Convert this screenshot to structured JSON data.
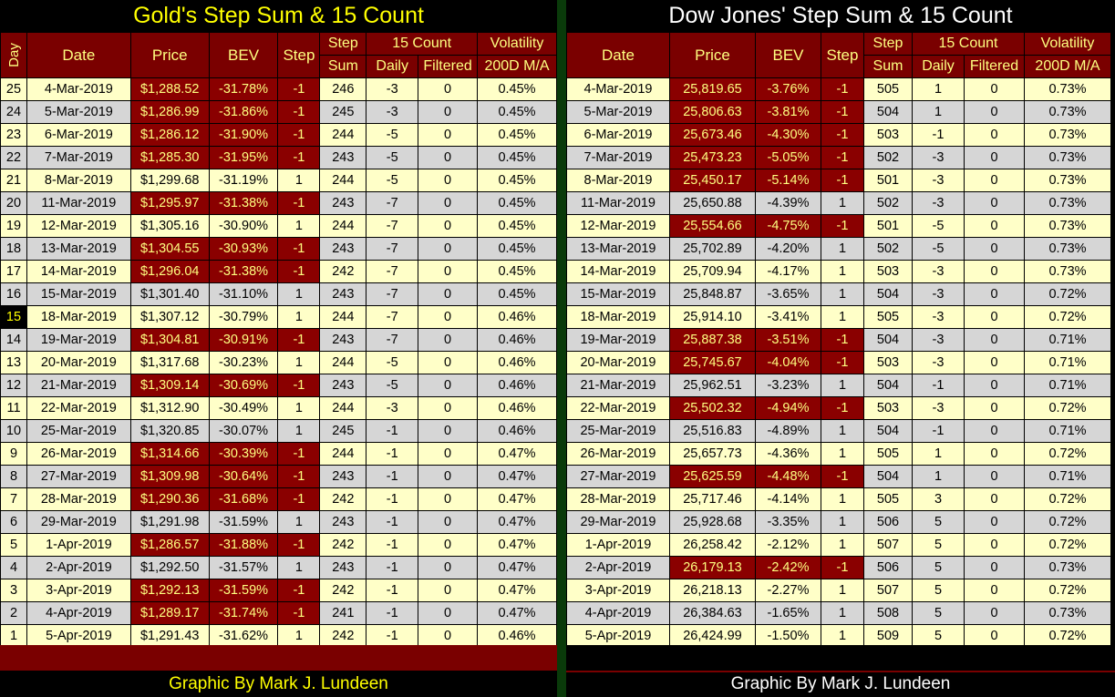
{
  "gold": {
    "title": "Gold's Step Sum & 15 Count",
    "headers": {
      "day": "Day",
      "date": "Date",
      "price": "Price",
      "bev": "BEV",
      "step": "Step",
      "step_sum_1": "Step",
      "step_sum_2": "Sum",
      "count15": "15 Count",
      "daily": "Daily",
      "filtered": "Filtered",
      "vol_1": "Volatility",
      "vol_2": "200D M/A"
    },
    "rows": [
      {
        "day": "25",
        "date": "4-Mar-2019",
        "price": "$1,288.52",
        "bev": "-31.78%",
        "step": "-1",
        "sum": "246",
        "daily": "-3",
        "filtered": "0",
        "vol": "0.45%"
      },
      {
        "day": "24",
        "date": "5-Mar-2019",
        "price": "$1,286.99",
        "bev": "-31.86%",
        "step": "-1",
        "sum": "245",
        "daily": "-3",
        "filtered": "0",
        "vol": "0.45%"
      },
      {
        "day": "23",
        "date": "6-Mar-2019",
        "price": "$1,286.12",
        "bev": "-31.90%",
        "step": "-1",
        "sum": "244",
        "daily": "-5",
        "filtered": "0",
        "vol": "0.45%"
      },
      {
        "day": "22",
        "date": "7-Mar-2019",
        "price": "$1,285.30",
        "bev": "-31.95%",
        "step": "-1",
        "sum": "243",
        "daily": "-5",
        "filtered": "0",
        "vol": "0.45%"
      },
      {
        "day": "21",
        "date": "8-Mar-2019",
        "price": "$1,299.68",
        "bev": "-31.19%",
        "step": "1",
        "sum": "244",
        "daily": "-5",
        "filtered": "0",
        "vol": "0.45%"
      },
      {
        "day": "20",
        "date": "11-Mar-2019",
        "price": "$1,295.97",
        "bev": "-31.38%",
        "step": "-1",
        "sum": "243",
        "daily": "-7",
        "filtered": "0",
        "vol": "0.45%"
      },
      {
        "day": "19",
        "date": "12-Mar-2019",
        "price": "$1,305.16",
        "bev": "-30.90%",
        "step": "1",
        "sum": "244",
        "daily": "-7",
        "filtered": "0",
        "vol": "0.45%"
      },
      {
        "day": "18",
        "date": "13-Mar-2019",
        "price": "$1,304.55",
        "bev": "-30.93%",
        "step": "-1",
        "sum": "243",
        "daily": "-7",
        "filtered": "0",
        "vol": "0.45%"
      },
      {
        "day": "17",
        "date": "14-Mar-2019",
        "price": "$1,296.04",
        "bev": "-31.38%",
        "step": "-1",
        "sum": "242",
        "daily": "-7",
        "filtered": "0",
        "vol": "0.45%"
      },
      {
        "day": "16",
        "date": "15-Mar-2019",
        "price": "$1,301.40",
        "bev": "-31.10%",
        "step": "1",
        "sum": "243",
        "daily": "-7",
        "filtered": "0",
        "vol": "0.45%"
      },
      {
        "day": "15",
        "date": "18-Mar-2019",
        "price": "$1,307.12",
        "bev": "-30.79%",
        "step": "1",
        "sum": "244",
        "daily": "-7",
        "filtered": "0",
        "vol": "0.46%"
      },
      {
        "day": "14",
        "date": "19-Mar-2019",
        "price": "$1,304.81",
        "bev": "-30.91%",
        "step": "-1",
        "sum": "243",
        "daily": "-7",
        "filtered": "0",
        "vol": "0.46%"
      },
      {
        "day": "13",
        "date": "20-Mar-2019",
        "price": "$1,317.68",
        "bev": "-30.23%",
        "step": "1",
        "sum": "244",
        "daily": "-5",
        "filtered": "0",
        "vol": "0.46%"
      },
      {
        "day": "12",
        "date": "21-Mar-2019",
        "price": "$1,309.14",
        "bev": "-30.69%",
        "step": "-1",
        "sum": "243",
        "daily": "-5",
        "filtered": "0",
        "vol": "0.46%"
      },
      {
        "day": "11",
        "date": "22-Mar-2019",
        "price": "$1,312.90",
        "bev": "-30.49%",
        "step": "1",
        "sum": "244",
        "daily": "-3",
        "filtered": "0",
        "vol": "0.46%"
      },
      {
        "day": "10",
        "date": "25-Mar-2019",
        "price": "$1,320.85",
        "bev": "-30.07%",
        "step": "1",
        "sum": "245",
        "daily": "-1",
        "filtered": "0",
        "vol": "0.46%"
      },
      {
        "day": "9",
        "date": "26-Mar-2019",
        "price": "$1,314.66",
        "bev": "-30.39%",
        "step": "-1",
        "sum": "244",
        "daily": "-1",
        "filtered": "0",
        "vol": "0.47%"
      },
      {
        "day": "8",
        "date": "27-Mar-2019",
        "price": "$1,309.98",
        "bev": "-30.64%",
        "step": "-1",
        "sum": "243",
        "daily": "-1",
        "filtered": "0",
        "vol": "0.47%"
      },
      {
        "day": "7",
        "date": "28-Mar-2019",
        "price": "$1,290.36",
        "bev": "-31.68%",
        "step": "-1",
        "sum": "242",
        "daily": "-1",
        "filtered": "0",
        "vol": "0.47%"
      },
      {
        "day": "6",
        "date": "29-Mar-2019",
        "price": "$1,291.98",
        "bev": "-31.59%",
        "step": "1",
        "sum": "243",
        "daily": "-1",
        "filtered": "0",
        "vol": "0.47%"
      },
      {
        "day": "5",
        "date": "1-Apr-2019",
        "price": "$1,286.57",
        "bev": "-31.88%",
        "step": "-1",
        "sum": "242",
        "daily": "-1",
        "filtered": "0",
        "vol": "0.47%"
      },
      {
        "day": "4",
        "date": "2-Apr-2019",
        "price": "$1,292.50",
        "bev": "-31.57%",
        "step": "1",
        "sum": "243",
        "daily": "-1",
        "filtered": "0",
        "vol": "0.47%"
      },
      {
        "day": "3",
        "date": "3-Apr-2019",
        "price": "$1,292.13",
        "bev": "-31.59%",
        "step": "-1",
        "sum": "242",
        "daily": "-1",
        "filtered": "0",
        "vol": "0.47%"
      },
      {
        "day": "2",
        "date": "4-Apr-2019",
        "price": "$1,289.17",
        "bev": "-31.74%",
        "step": "-1",
        "sum": "241",
        "daily": "-1",
        "filtered": "0",
        "vol": "0.47%"
      },
      {
        "day": "1",
        "date": "5-Apr-2019",
        "price": "$1,291.43",
        "bev": "-31.62%",
        "step": "1",
        "sum": "242",
        "daily": "-1",
        "filtered": "0",
        "vol": "0.46%"
      }
    ],
    "footer": "Graphic By Mark J. Lundeen"
  },
  "dow": {
    "title": "Dow Jones' Step Sum & 15 Count",
    "headers": {
      "date": "Date",
      "price": "Price",
      "bev": "BEV",
      "step": "Step",
      "step_sum_1": "Step",
      "step_sum_2": "Sum",
      "count15": "15 Count",
      "daily": "Daily",
      "filtered": "Filtered",
      "vol_1": "Volatility",
      "vol_2": "200D M/A"
    },
    "rows": [
      {
        "date": "4-Mar-2019",
        "price": "25,819.65",
        "bev": "-3.76%",
        "step": "-1",
        "sum": "505",
        "daily": "1",
        "filtered": "0",
        "vol": "0.73%"
      },
      {
        "date": "5-Mar-2019",
        "price": "25,806.63",
        "bev": "-3.81%",
        "step": "-1",
        "sum": "504",
        "daily": "1",
        "filtered": "0",
        "vol": "0.73%"
      },
      {
        "date": "6-Mar-2019",
        "price": "25,673.46",
        "bev": "-4.30%",
        "step": "-1",
        "sum": "503",
        "daily": "-1",
        "filtered": "0",
        "vol": "0.73%"
      },
      {
        "date": "7-Mar-2019",
        "price": "25,473.23",
        "bev": "-5.05%",
        "step": "-1",
        "sum": "502",
        "daily": "-3",
        "filtered": "0",
        "vol": "0.73%"
      },
      {
        "date": "8-Mar-2019",
        "price": "25,450.17",
        "bev": "-5.14%",
        "step": "-1",
        "sum": "501",
        "daily": "-3",
        "filtered": "0",
        "vol": "0.73%"
      },
      {
        "date": "11-Mar-2019",
        "price": "25,650.88",
        "bev": "-4.39%",
        "step": "1",
        "sum": "502",
        "daily": "-3",
        "filtered": "0",
        "vol": "0.73%"
      },
      {
        "date": "12-Mar-2019",
        "price": "25,554.66",
        "bev": "-4.75%",
        "step": "-1",
        "sum": "501",
        "daily": "-5",
        "filtered": "0",
        "vol": "0.73%"
      },
      {
        "date": "13-Mar-2019",
        "price": "25,702.89",
        "bev": "-4.20%",
        "step": "1",
        "sum": "502",
        "daily": "-5",
        "filtered": "0",
        "vol": "0.73%"
      },
      {
        "date": "14-Mar-2019",
        "price": "25,709.94",
        "bev": "-4.17%",
        "step": "1",
        "sum": "503",
        "daily": "-3",
        "filtered": "0",
        "vol": "0.73%"
      },
      {
        "date": "15-Mar-2019",
        "price": "25,848.87",
        "bev": "-3.65%",
        "step": "1",
        "sum": "504",
        "daily": "-3",
        "filtered": "0",
        "vol": "0.72%"
      },
      {
        "date": "18-Mar-2019",
        "price": "25,914.10",
        "bev": "-3.41%",
        "step": "1",
        "sum": "505",
        "daily": "-3",
        "filtered": "0",
        "vol": "0.72%"
      },
      {
        "date": "19-Mar-2019",
        "price": "25,887.38",
        "bev": "-3.51%",
        "step": "-1",
        "sum": "504",
        "daily": "-3",
        "filtered": "0",
        "vol": "0.71%"
      },
      {
        "date": "20-Mar-2019",
        "price": "25,745.67",
        "bev": "-4.04%",
        "step": "-1",
        "sum": "503",
        "daily": "-3",
        "filtered": "0",
        "vol": "0.71%"
      },
      {
        "date": "21-Mar-2019",
        "price": "25,962.51",
        "bev": "-3.23%",
        "step": "1",
        "sum": "504",
        "daily": "-1",
        "filtered": "0",
        "vol": "0.71%"
      },
      {
        "date": "22-Mar-2019",
        "price": "25,502.32",
        "bev": "-4.94%",
        "step": "-1",
        "sum": "503",
        "daily": "-3",
        "filtered": "0",
        "vol": "0.72%"
      },
      {
        "date": "25-Mar-2019",
        "price": "25,516.83",
        "bev": "-4.89%",
        "step": "1",
        "sum": "504",
        "daily": "-1",
        "filtered": "0",
        "vol": "0.71%"
      },
      {
        "date": "26-Mar-2019",
        "price": "25,657.73",
        "bev": "-4.36%",
        "step": "1",
        "sum": "505",
        "daily": "1",
        "filtered": "0",
        "vol": "0.72%"
      },
      {
        "date": "27-Mar-2019",
        "price": "25,625.59",
        "bev": "-4.48%",
        "step": "-1",
        "sum": "504",
        "daily": "1",
        "filtered": "0",
        "vol": "0.71%"
      },
      {
        "date": "28-Mar-2019",
        "price": "25,717.46",
        "bev": "-4.14%",
        "step": "1",
        "sum": "505",
        "daily": "3",
        "filtered": "0",
        "vol": "0.72%"
      },
      {
        "date": "29-Mar-2019",
        "price": "25,928.68",
        "bev": "-3.35%",
        "step": "1",
        "sum": "506",
        "daily": "5",
        "filtered": "0",
        "vol": "0.72%"
      },
      {
        "date": "1-Apr-2019",
        "price": "26,258.42",
        "bev": "-2.12%",
        "step": "1",
        "sum": "507",
        "daily": "5",
        "filtered": "0",
        "vol": "0.72%"
      },
      {
        "date": "2-Apr-2019",
        "price": "26,179.13",
        "bev": "-2.42%",
        "step": "-1",
        "sum": "506",
        "daily": "5",
        "filtered": "0",
        "vol": "0.73%"
      },
      {
        "date": "3-Apr-2019",
        "price": "26,218.13",
        "bev": "-2.27%",
        "step": "1",
        "sum": "507",
        "daily": "5",
        "filtered": "0",
        "vol": "0.72%"
      },
      {
        "date": "4-Apr-2019",
        "price": "26,384.63",
        "bev": "-1.65%",
        "step": "1",
        "sum": "508",
        "daily": "5",
        "filtered": "0",
        "vol": "0.73%"
      },
      {
        "date": "5-Apr-2019",
        "price": "26,424.99",
        "bev": "-1.50%",
        "step": "1",
        "sum": "509",
        "daily": "5",
        "filtered": "0",
        "vol": "0.72%"
      }
    ],
    "footer": "Graphic By Mark J. Lundeen"
  },
  "colors": {
    "header_bg": "#7a0000",
    "header_text": "#ffff80",
    "negative_bg": "#8a0000",
    "row_yellow": "#ffffc8",
    "row_gray": "#d6d6d6",
    "gold_title": "#ffff00",
    "dow_title": "#ffffff"
  }
}
